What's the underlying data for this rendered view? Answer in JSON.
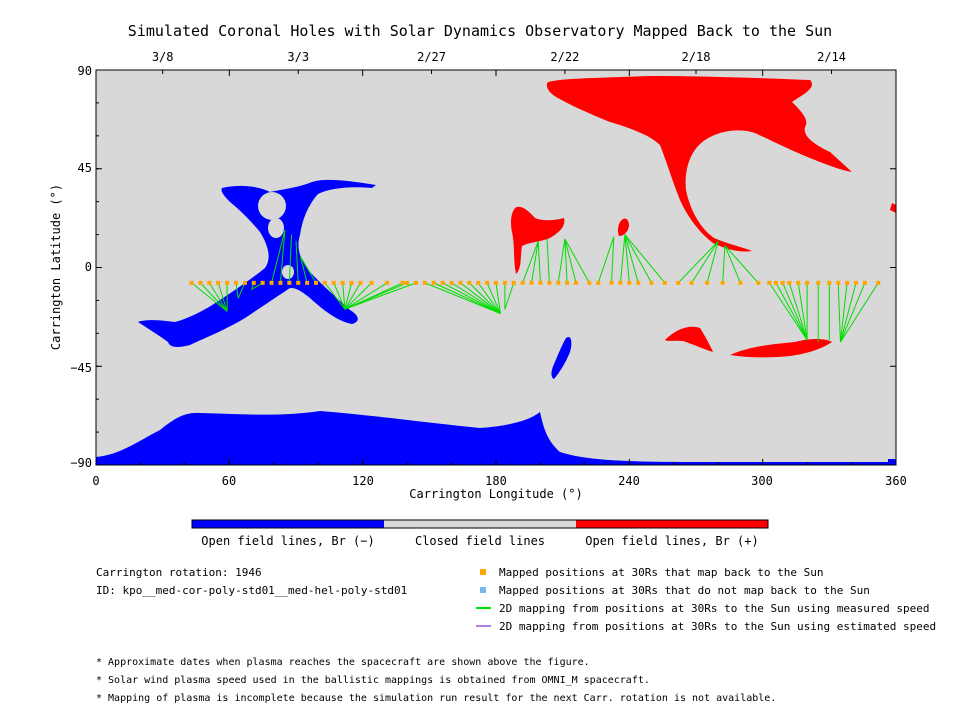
{
  "chart_data": {
    "type": "scatter",
    "title": "Simulated Coronal Holes with Solar Dynamics Observatory Mapped Back to the Sun",
    "xlabel": "Carrington Longitude (°)",
    "ylabel": "Carrington Latitude (°)",
    "xlim": [
      0,
      360
    ],
    "ylim": [
      -90,
      90
    ],
    "xticks": [
      "0",
      "60",
      "120",
      "180",
      "240",
      "300",
      "360"
    ],
    "yticks": [
      "90",
      "45",
      "0",
      "−45",
      "−90"
    ],
    "top_dates": [
      {
        "label": "3/8",
        "lon": 30
      },
      {
        "label": "3/3",
        "lon": 91
      },
      {
        "label": "2/27",
        "lon": 151
      },
      {
        "label": "2/22",
        "lon": 211
      },
      {
        "label": "2/18",
        "lon": 270
      },
      {
        "label": "2/14",
        "lon": 331
      }
    ],
    "colors": {
      "background": "#d8d8d8",
      "negative": "#0000ff",
      "positive": "#ff0000",
      "points": "#ffa500",
      "lines": "#00dd00"
    },
    "mapped_positions": {
      "lat": -7,
      "lon": [
        43,
        47,
        51,
        55,
        59,
        63,
        67,
        71,
        75,
        79,
        83,
        87,
        91,
        95,
        99,
        103,
        107,
        111,
        115,
        119,
        124,
        131,
        138,
        140,
        144,
        148,
        152,
        156,
        160,
        164,
        168,
        172,
        176,
        180,
        184,
        188,
        192,
        196,
        200,
        204,
        208,
        212,
        216,
        222,
        226,
        232,
        236,
        240,
        244,
        250,
        256,
        262,
        268,
        275,
        282,
        290,
        298,
        303,
        306,
        309,
        312,
        316,
        320,
        325,
        330,
        334,
        338,
        342,
        346,
        352
      ],
      "footpoints": [
        {
          "lon": 59,
          "lat": -20
        },
        {
          "lon": 61,
          "lat": -18
        },
        {
          "lon": 64,
          "lat": -14
        },
        {
          "lon": 70,
          "lat": -10
        },
        {
          "lon": 85,
          "lat": 17
        },
        {
          "lon": 88,
          "lat": 15
        },
        {
          "lon": 90,
          "lat": 12
        },
        {
          "lon": 92,
          "lat": 5
        },
        {
          "lon": 112,
          "lat": -19
        },
        {
          "lon": 182,
          "lat": -21
        },
        {
          "lon": 184,
          "lat": -19
        },
        {
          "lon": 199,
          "lat": 12
        },
        {
          "lon": 203,
          "lat": 13
        },
        {
          "lon": 211,
          "lat": 13
        },
        {
          "lon": 233,
          "lat": 14
        },
        {
          "lon": 238,
          "lat": 15
        },
        {
          "lon": 280,
          "lat": 12
        },
        {
          "lon": 283,
          "lat": 10
        },
        {
          "lon": 320,
          "lat": -33
        },
        {
          "lon": 325,
          "lat": -34
        },
        {
          "lon": 330,
          "lat": -33
        },
        {
          "lon": 335,
          "lat": -34
        }
      ]
    },
    "colorbar": [
      "Open field lines, Br (−)",
      "Closed field lines",
      "Open field lines, Br (+)"
    ]
  },
  "info": {
    "rotation": "Carrington rotation: 1946",
    "id": "ID: kpo__med-cor-poly-std01__med-hel-poly-std01"
  },
  "legend": [
    {
      "text": "Mapped positions at 30Rs that map back to the Sun",
      "color": "#ffa500",
      "kind": "square"
    },
    {
      "text": "Mapped positions at 30Rs that do not map back to the Sun",
      "color": "#7ab8e8",
      "kind": "square"
    },
    {
      "text": "2D mapping from positions at 30Rs to the Sun using measured speed",
      "color": "#00dd00",
      "kind": "line"
    },
    {
      "text": "2D mapping from positions at 30Rs to the Sun using estimated speed",
      "color": "#b27ee6",
      "kind": "line"
    }
  ],
  "notes": [
    "* Approximate dates when plasma reaches the spacecraft are shown above the figure.",
    "* Solar wind plasma speed used in the ballistic mappings is obtained from OMNI_M spacecraft.",
    "* Mapping of plasma is incomplete because the simulation run result for the next Carr. rotation is not available."
  ]
}
